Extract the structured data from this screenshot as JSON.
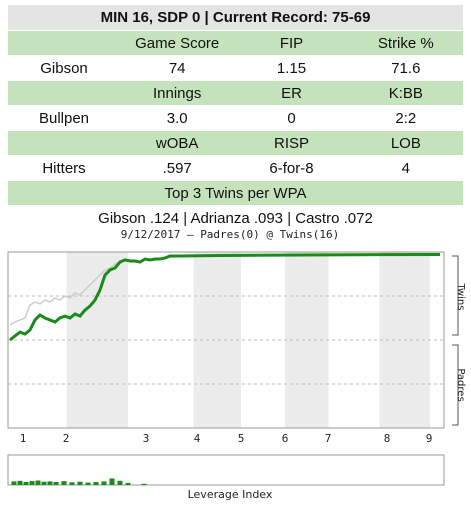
{
  "table": {
    "title": "MIN 16, SDP 0 | Current Record: 75-69",
    "rows": [
      [
        null,
        "Game Score",
        "FIP",
        "Strike %"
      ],
      [
        "Gibson",
        "74",
        "1.15",
        "71.6"
      ],
      [
        null,
        "Innings",
        "ER",
        "K:BB"
      ],
      [
        "Bullpen",
        "3.0",
        "0",
        "2:2"
      ],
      [
        null,
        "wOBA",
        "RISP",
        "LOB"
      ],
      [
        "Hitters",
        ".597",
        "6-for-8",
        "4"
      ],
      [
        "Top 3 Twins per WPA"
      ],
      [
        "Gibson .124 | Adrianza .093 | Castro .072"
      ]
    ]
  },
  "chart_data": [
    {
      "type": "line",
      "title": "9/12/2017 – Padres(0) @ Twins(16)",
      "annotations": [
        "Twins",
        "Padres"
      ],
      "xlim": [
        0,
        436
      ],
      "ylim": [
        0,
        100
      ],
      "yticks": [
        25,
        50,
        75
      ],
      "xticks": [
        {
          "value": 15,
          "label": "1"
        },
        {
          "value": 58,
          "label": "2"
        },
        {
          "value": 138,
          "label": "3"
        },
        {
          "value": 189,
          "label": "4"
        },
        {
          "value": 233,
          "label": "5"
        },
        {
          "value": 277,
          "label": "6"
        },
        {
          "value": 320,
          "label": "7"
        },
        {
          "value": 379,
          "label": "8"
        },
        {
          "value": 421,
          "label": "9"
        }
      ],
      "series": [
        {
          "color": "#cccccc",
          "x": [
            2,
            7,
            12,
            17,
            22,
            27,
            32,
            37,
            42,
            47,
            52,
            57,
            62,
            67,
            72,
            77,
            82,
            87,
            92,
            97,
            102,
            107,
            112
          ],
          "values": [
            58.5,
            60.2,
            61.4,
            62.5,
            69.9,
            71.6,
            70.5,
            72.7,
            71.6,
            73.9,
            72.7,
            75,
            73.9,
            76.7,
            75.6,
            78.4,
            81.3,
            84.1,
            86.9,
            89.8,
            90.9,
            93.2,
            94.3
          ]
        },
        {
          "color": "#1a8a1a",
          "x": [
            2,
            7,
            12,
            17,
            22,
            27,
            32,
            37,
            42,
            47,
            52,
            57,
            62,
            67,
            72,
            77,
            82,
            87,
            92,
            97,
            102,
            107,
            112,
            117,
            122,
            127,
            132,
            137,
            142,
            147,
            152,
            157,
            162,
            172,
            212,
            292,
            432
          ],
          "values": [
            50,
            52.3,
            54.5,
            53.4,
            55.7,
            61.4,
            64.2,
            62.5,
            61.4,
            60.2,
            62.5,
            63.6,
            62.5,
            64.8,
            63.6,
            67,
            69.3,
            72.7,
            78.4,
            86.9,
            89.8,
            90.9,
            94.3,
            95.5,
            94.9,
            94.9,
            94.3,
            96,
            95.5,
            96,
            96,
            96.6,
            97.7,
            97.7,
            98,
            98.3,
            98.6
          ]
        }
      ]
    },
    {
      "type": "bar",
      "title": "Leverage Index",
      "color": "#1a8a1a",
      "xlim": [
        0,
        436
      ],
      "ylim": [
        0,
        10
      ],
      "x": [
        6,
        12,
        18,
        24,
        30,
        36,
        42,
        48,
        56,
        64,
        72,
        80,
        88,
        96,
        104,
        112,
        120,
        136
      ],
      "values": [
        1.2,
        1.4,
        1.0,
        1.3,
        1.5,
        1.1,
        1.2,
        1.0,
        1.3,
        0.9,
        1.1,
        0.8,
        1.0,
        1.2,
        2.2,
        1.4,
        0.7,
        0.4
      ]
    }
  ]
}
